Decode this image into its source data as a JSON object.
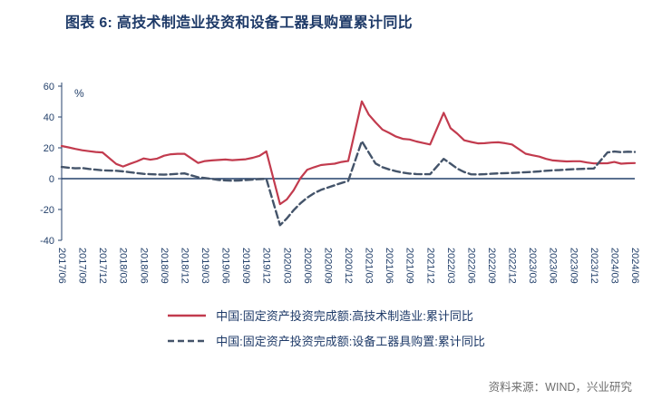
{
  "header": {
    "title": "图表 6: 高技术制造业投资和设备工器具购置累计同比"
  },
  "source_note": "资料来源：WIND，兴业研究",
  "colors": {
    "title_navy": "#1E3A68",
    "axis_navy": "#24416B",
    "hightech_red": "#C23B4E",
    "equipment_slate": "#44546A",
    "source_gray": "#6E6E6E"
  },
  "chart_data": {
    "type": "line",
    "title": "高技术制造业投资和设备工器具购置累计同比",
    "unit_label": "%",
    "ylim": [
      -40,
      60
    ],
    "yticks": [
      60,
      40,
      20,
      0,
      -20,
      -40
    ],
    "grid": false,
    "legend_position": "bottom",
    "axis_color": "#24416B",
    "x_range_months": [
      0,
      84
    ],
    "x_tick_step_months": 3,
    "x_tick_labels": [
      "2017/06",
      "2017/09",
      "2017/12",
      "2018/03",
      "2018/06",
      "2018/09",
      "2018/12",
      "2019/03",
      "2019/06",
      "2019/09",
      "2019/12",
      "2020/03",
      "2020/06",
      "2020/09",
      "2020/12",
      "2021/03",
      "2021/06",
      "2021/09",
      "2021/12",
      "2022/03",
      "2022/06",
      "2022/09",
      "2022/12",
      "2023/03",
      "2023/06",
      "2023/09",
      "2023/12",
      "2024/03",
      "2024/06"
    ],
    "series": [
      {
        "name": "中国:固定资产投资完成额:高技术制造业:累计同比",
        "color": "#C23B4E",
        "style": "solid",
        "points": [
          [
            0,
            21.2
          ],
          [
            1,
            20.3
          ],
          [
            2,
            19.3
          ],
          [
            3,
            18.4
          ],
          [
            4,
            17.8
          ],
          [
            5,
            17.3
          ],
          [
            6,
            17.0
          ],
          [
            8,
            9.5
          ],
          [
            9,
            7.9
          ],
          [
            10,
            9.6
          ],
          [
            11,
            11.2
          ],
          [
            12,
            13.1
          ],
          [
            13,
            12.3
          ],
          [
            14,
            13.0
          ],
          [
            15,
            14.9
          ],
          [
            16,
            15.8
          ],
          [
            17,
            16.1
          ],
          [
            18,
            16.1
          ],
          [
            20,
            10.2
          ],
          [
            21,
            11.4
          ],
          [
            22,
            11.8
          ],
          [
            23,
            12.1
          ],
          [
            24,
            12.4
          ],
          [
            25,
            12.0
          ],
          [
            26,
            12.3
          ],
          [
            27,
            12.6
          ],
          [
            28,
            13.5
          ],
          [
            29,
            14.8
          ],
          [
            30,
            17.7
          ],
          [
            32,
            -16.5
          ],
          [
            33,
            -13.5
          ],
          [
            34,
            -7.5
          ],
          [
            35,
            0.3
          ],
          [
            36,
            5.8
          ],
          [
            37,
            7.4
          ],
          [
            38,
            8.8
          ],
          [
            39,
            9.3
          ],
          [
            40,
            9.7
          ],
          [
            41,
            10.8
          ],
          [
            42,
            11.5
          ],
          [
            44,
            50.1
          ],
          [
            45,
            41.6
          ],
          [
            46,
            36.5
          ],
          [
            47,
            31.9
          ],
          [
            48,
            29.7
          ],
          [
            49,
            27.3
          ],
          [
            50,
            25.8
          ],
          [
            51,
            25.4
          ],
          [
            52,
            24.1
          ],
          [
            53,
            23.1
          ],
          [
            54,
            22.2
          ],
          [
            56,
            42.7
          ],
          [
            57,
            32.7
          ],
          [
            58,
            29.1
          ],
          [
            59,
            24.9
          ],
          [
            60,
            23.8
          ],
          [
            61,
            22.9
          ],
          [
            62,
            23.0
          ],
          [
            63,
            23.4
          ],
          [
            64,
            23.6
          ],
          [
            65,
            23.0
          ],
          [
            66,
            22.2
          ],
          [
            68,
            16.2
          ],
          [
            69,
            15.2
          ],
          [
            70,
            14.3
          ],
          [
            71,
            12.8
          ],
          [
            72,
            11.8
          ],
          [
            73,
            11.5
          ],
          [
            74,
            11.2
          ],
          [
            75,
            11.3
          ],
          [
            76,
            11.3
          ],
          [
            77,
            10.5
          ],
          [
            78,
            9.9
          ],
          [
            80,
            10.0
          ],
          [
            81,
            10.8
          ],
          [
            82,
            9.7
          ],
          [
            83,
            10.0
          ],
          [
            84,
            10.1
          ]
        ]
      },
      {
        "name": "中国:固定资产投资完成额:设备工器具购置:累计同比",
        "color": "#44546A",
        "style": "dashed",
        "points": [
          [
            0,
            7.6
          ],
          [
            1,
            7.1
          ],
          [
            2,
            6.7
          ],
          [
            3,
            6.9
          ],
          [
            4,
            6.3
          ],
          [
            5,
            5.8
          ],
          [
            6,
            5.4
          ],
          [
            8,
            5.1
          ],
          [
            9,
            4.7
          ],
          [
            10,
            4.2
          ],
          [
            11,
            3.6
          ],
          [
            12,
            3.1
          ],
          [
            13,
            2.9
          ],
          [
            14,
            2.7
          ],
          [
            15,
            2.6
          ],
          [
            16,
            2.8
          ],
          [
            17,
            3.1
          ],
          [
            18,
            3.4
          ],
          [
            20,
            0.9
          ],
          [
            21,
            0.4
          ],
          [
            22,
            -0.2
          ],
          [
            23,
            -0.8
          ],
          [
            24,
            -1.1
          ],
          [
            25,
            -1.3
          ],
          [
            26,
            -1.2
          ],
          [
            27,
            -0.9
          ],
          [
            28,
            -0.6
          ],
          [
            29,
            -0.3
          ],
          [
            30,
            -0.1
          ],
          [
            32,
            -30.2
          ],
          [
            33,
            -25.8
          ],
          [
            34,
            -20.5
          ],
          [
            35,
            -16.0
          ],
          [
            36,
            -12.3
          ],
          [
            37,
            -9.5
          ],
          [
            38,
            -7.3
          ],
          [
            39,
            -5.8
          ],
          [
            40,
            -4.3
          ],
          [
            41,
            -2.8
          ],
          [
            42,
            -1.5
          ],
          [
            44,
            24.3
          ],
          [
            45,
            17.0
          ],
          [
            46,
            9.8
          ],
          [
            47,
            7.5
          ],
          [
            48,
            6.0
          ],
          [
            49,
            4.8
          ],
          [
            50,
            3.9
          ],
          [
            51,
            3.3
          ],
          [
            52,
            3.0
          ],
          [
            53,
            2.9
          ],
          [
            54,
            2.9
          ],
          [
            56,
            12.8
          ],
          [
            57,
            9.7
          ],
          [
            58,
            6.5
          ],
          [
            59,
            4.3
          ],
          [
            60,
            2.8
          ],
          [
            61,
            2.7
          ],
          [
            62,
            2.9
          ],
          [
            63,
            3.2
          ],
          [
            64,
            3.4
          ],
          [
            65,
            3.6
          ],
          [
            66,
            3.7
          ],
          [
            68,
            4.2
          ],
          [
            69,
            4.4
          ],
          [
            70,
            4.7
          ],
          [
            71,
            5.1
          ],
          [
            72,
            5.4
          ],
          [
            73,
            5.6
          ],
          [
            74,
            5.9
          ],
          [
            75,
            6.1
          ],
          [
            76,
            6.3
          ],
          [
            77,
            6.5
          ],
          [
            78,
            6.6
          ],
          [
            80,
            17.0
          ],
          [
            81,
            17.6
          ],
          [
            82,
            17.2
          ],
          [
            83,
            17.5
          ],
          [
            84,
            17.3
          ]
        ]
      }
    ]
  }
}
